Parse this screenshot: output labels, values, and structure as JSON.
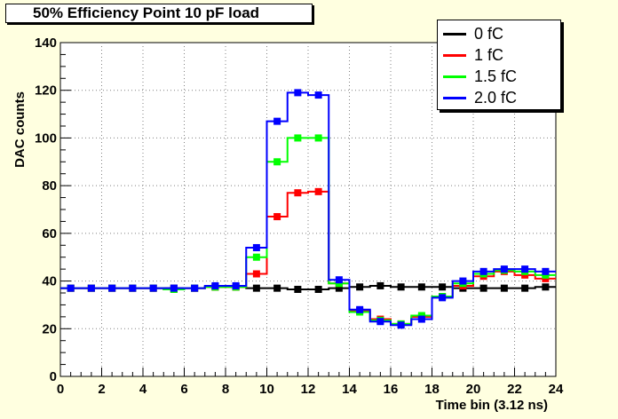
{
  "chart_data": {
    "type": "line",
    "title": "50% Efficiency Point 10 pF load",
    "xlabel": "Time bin (3.12 ns)",
    "ylabel": "DAC counts",
    "xlim": [
      0,
      24
    ],
    "ylim": [
      0,
      140
    ],
    "x_ticks": [
      "0",
      "2",
      "4",
      "6",
      "8",
      "10",
      "12",
      "14",
      "16",
      "18",
      "20",
      "22",
      "24"
    ],
    "y_ticks": [
      "0",
      "20",
      "40",
      "60",
      "80",
      "100",
      "120",
      "140"
    ],
    "grid": true,
    "legend_position": "top-right",
    "style": "step-histogram",
    "x": [
      0.5,
      1.5,
      2.5,
      3.5,
      4.5,
      5.5,
      6.5,
      7.5,
      8.5,
      9.5,
      10.5,
      11.5,
      12.5,
      13.5,
      14.5,
      15.5,
      16.5,
      17.5,
      18.5,
      19.5,
      20.5,
      21.5,
      22.5,
      23.5
    ],
    "series": [
      {
        "name": "0 fC",
        "color": "#000000",
        "values": [
          37,
          37,
          37,
          37,
          37,
          37,
          37,
          37.5,
          37.5,
          37,
          37,
          36.5,
          36.5,
          37,
          37.5,
          38,
          37.5,
          37.5,
          37.5,
          37,
          37,
          37,
          37,
          37.5
        ]
      },
      {
        "name": "1 fC",
        "color": "#ff0000",
        "values": [
          37,
          37,
          37,
          37,
          37,
          36.5,
          37,
          37.5,
          37.5,
          43,
          67,
          77,
          77.5,
          39,
          27.5,
          24,
          22,
          25,
          33.5,
          38,
          42,
          44,
          42.5,
          41
        ]
      },
      {
        "name": "1.5 fC",
        "color": "#00ff00",
        "values": [
          37,
          37,
          37,
          37,
          37,
          36.5,
          37,
          37.5,
          37.5,
          50,
          90,
          100,
          100,
          39,
          27,
          23.5,
          22,
          25.5,
          33.5,
          39,
          43,
          44.5,
          44,
          42.5
        ]
      },
      {
        "name": "2.0 fC",
        "color": "#0000ff",
        "values": [
          37,
          37,
          37,
          37,
          37,
          37,
          37,
          38,
          38,
          54,
          107,
          119,
          118,
          40.5,
          28,
          23,
          21.5,
          24,
          33,
          40,
          44,
          45,
          45,
          44
        ]
      }
    ]
  },
  "colors": {
    "canvas_bg": "#ffffe0",
    "plot_bg": "#ffffff",
    "grid": "#808080"
  }
}
